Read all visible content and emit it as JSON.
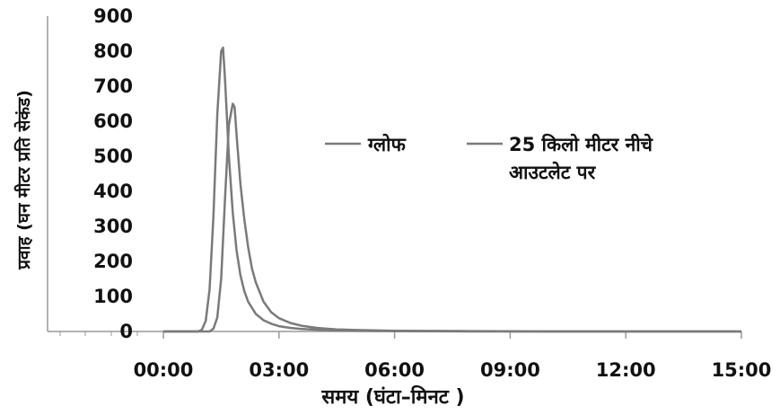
{
  "chart_data": {
    "type": "line",
    "title": "",
    "xlabel": "समय (घंटा–मिनट  )",
    "ylabel": "प्रवाह (घन मीटर प्रति सेकंड)",
    "x_tick_labels": [
      "00:00",
      "03:00",
      "06:00",
      "09:00",
      "12:00",
      "15:00"
    ],
    "x_unit": "hours",
    "xlim": [
      0,
      15
    ],
    "y_ticks": [
      0,
      100,
      200,
      300,
      400,
      500,
      600,
      700,
      800,
      900
    ],
    "ylim": [
      0,
      900
    ],
    "grid": false,
    "legend": {
      "placement": "right-center",
      "entries": [
        "ग्लोफ",
        "25 किलो मीटर नीचे",
        "आउटलेट पर"
      ]
    },
    "series": [
      {
        "name": "ग्लोफ",
        "color": "#7a7a7a",
        "x": [
          0,
          0.9,
          1.0,
          1.1,
          1.2,
          1.3,
          1.4,
          1.5,
          1.55,
          1.6,
          1.7,
          1.8,
          1.9,
          2.0,
          2.1,
          2.2,
          2.4,
          2.6,
          2.8,
          3.0,
          3.3,
          3.6,
          4.0,
          4.5,
          5.0,
          6.0,
          8.0,
          10.0,
          12.0,
          15.0
        ],
        "y": [
          0,
          0,
          5,
          30,
          120,
          330,
          620,
          800,
          810,
          720,
          500,
          340,
          230,
          160,
          115,
          85,
          50,
          32,
          22,
          15,
          10,
          7,
          5,
          3,
          2,
          1,
          0,
          0,
          0,
          0
        ]
      },
      {
        "name": "25 किलो मीटर नीचे आउटलेट पर",
        "color": "#7a7a7a",
        "x": [
          0,
          1.2,
          1.3,
          1.4,
          1.5,
          1.6,
          1.7,
          1.8,
          1.85,
          1.9,
          2.0,
          2.1,
          2.2,
          2.3,
          2.4,
          2.6,
          2.8,
          3.0,
          3.3,
          3.6,
          4.0,
          4.5,
          5.0,
          6.0,
          8.0,
          10.0,
          12.0,
          15.0
        ],
        "y": [
          0,
          0,
          8,
          40,
          150,
          380,
          590,
          650,
          640,
          560,
          420,
          320,
          240,
          180,
          140,
          85,
          55,
          38,
          24,
          16,
          10,
          6,
          4,
          2,
          1,
          0,
          0,
          0
        ]
      }
    ]
  }
}
